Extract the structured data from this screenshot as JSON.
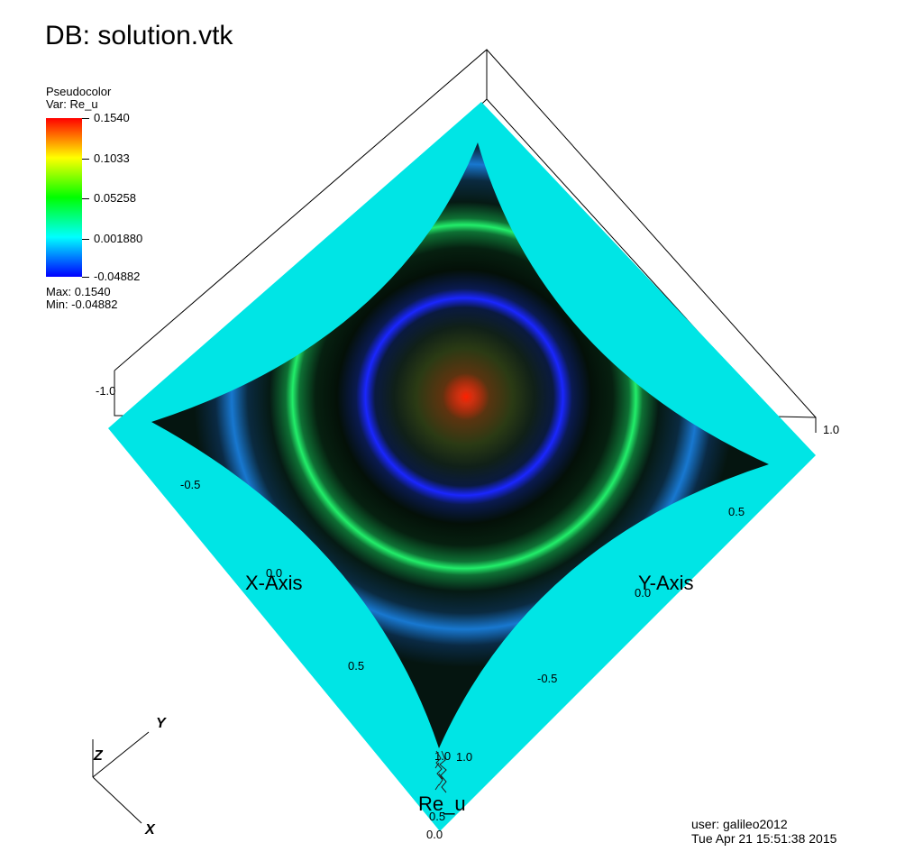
{
  "header": {
    "db_title": "DB: solution.vtk"
  },
  "legend": {
    "plot_type": "Pseudocolor",
    "variable": "Var: Re_u",
    "ticks": [
      "0.1540",
      "0.1033",
      "0.05258",
      "0.001880",
      "-0.04882"
    ],
    "max_label": "Max:  0.1540",
    "min_label": "Min: -0.04882",
    "colormap": [
      "#ff0000",
      "#ffff00",
      "#00ff00",
      "#00ffff",
      "#0000ff"
    ]
  },
  "axes": {
    "x_title": "X-Axis",
    "y_title": "Y-Axis",
    "z_title": "Re_u",
    "x_ticks": [
      "-1.0",
      "-0.5",
      "0.0",
      "0.5",
      "1.0"
    ],
    "y_ticks": [
      "-0.5",
      "0.0",
      "0.5",
      "1.0"
    ],
    "z_ticks": [
      "0.5",
      "0.0"
    ]
  },
  "triad": {
    "y_label": "Y",
    "z_label": "Z",
    "x_label": "X"
  },
  "footer": {
    "user": "user: galileo2012",
    "timestamp": "Tue Apr 21 15:51:38 2015"
  },
  "colors": {
    "border_cyan": "#00e5e5",
    "surface_dark": "#050d08",
    "peak_red": "#ff2000"
  }
}
